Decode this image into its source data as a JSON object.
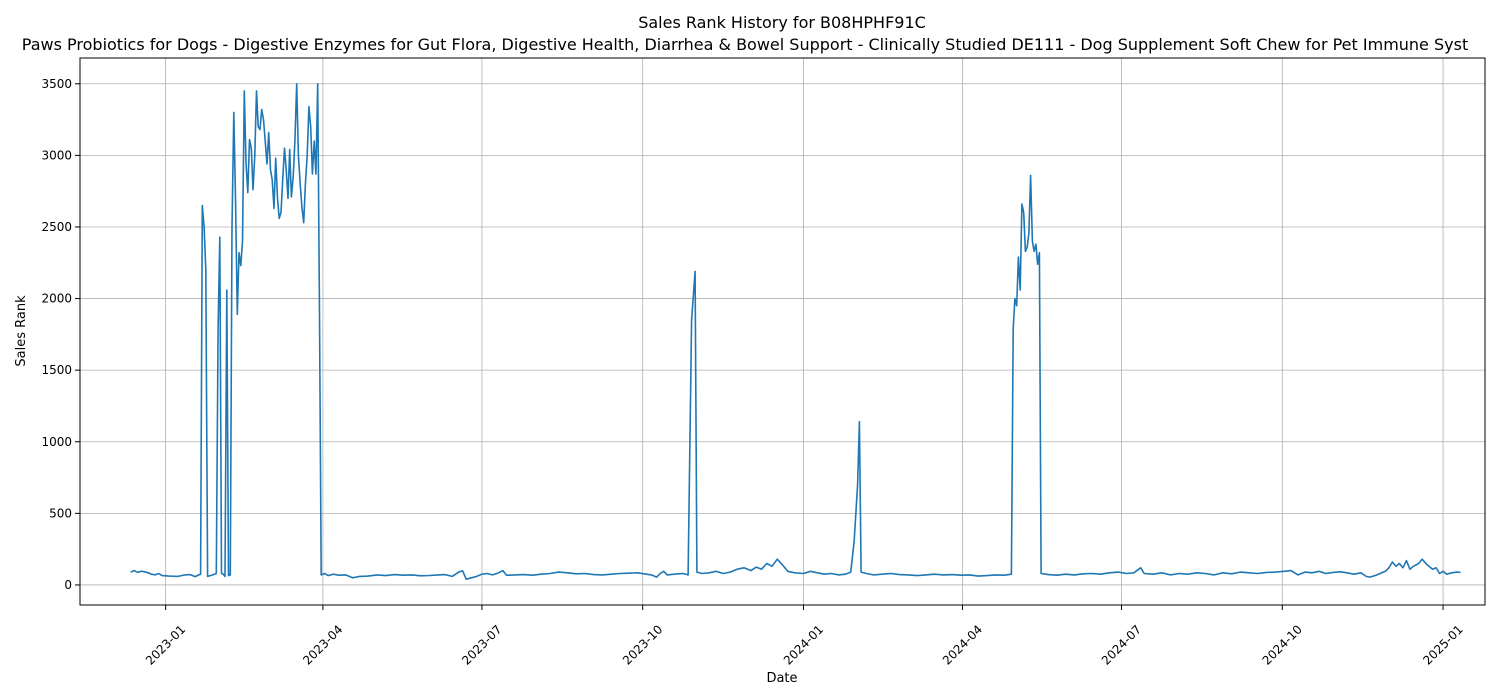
{
  "chart_data": {
    "type": "line",
    "title": "Sales Rank History for B08HPHF91C",
    "subtitle": "Paws Probiotics for Dogs - Digestive Enzymes for Gut Flora, Digestive Health, Diarrhea & Bowel Support - Clinically Studied DE111 - Dog Supplement Soft Chew for Pet Immune Syst",
    "xlabel": "Date",
    "ylabel": "Sales Rank",
    "xlim": [
      "2022-11-13",
      "2025-01-25"
    ],
    "ylim": [
      -140,
      3680
    ],
    "grid": true,
    "line_color": "#1f77b4",
    "x_ticks": [
      "2023-01",
      "2023-04",
      "2023-07",
      "2023-10",
      "2024-01",
      "2024-04",
      "2024-07",
      "2024-10",
      "2025-01"
    ],
    "y_ticks": [
      0,
      500,
      1000,
      1500,
      2000,
      2500,
      3000,
      3500
    ],
    "series": [
      {
        "points": [
          [
            "2022-12-12",
            90
          ],
          [
            "2022-12-14",
            100
          ],
          [
            "2022-12-16",
            88
          ],
          [
            "2022-12-18",
            96
          ],
          [
            "2022-12-20",
            92
          ],
          [
            "2022-12-22",
            85
          ],
          [
            "2022-12-24",
            75
          ],
          [
            "2022-12-26",
            70
          ],
          [
            "2022-12-28",
            80
          ],
          [
            "2022-12-30",
            65
          ],
          [
            "2023-01-03",
            62
          ],
          [
            "2023-01-08",
            60
          ],
          [
            "2023-01-12",
            70
          ],
          [
            "2023-01-15",
            72
          ],
          [
            "2023-01-18",
            58
          ],
          [
            "2023-01-20",
            70
          ],
          [
            "2023-01-21",
            75
          ],
          [
            "2023-01-22",
            2650
          ],
          [
            "2023-01-23",
            2500
          ],
          [
            "2023-01-24",
            2200
          ],
          [
            "2023-01-25",
            60
          ],
          [
            "2023-01-28",
            70
          ],
          [
            "2023-01-30",
            80
          ],
          [
            "2023-01-31",
            1800
          ],
          [
            "2023-02-01",
            2430
          ],
          [
            "2023-02-02",
            80
          ],
          [
            "2023-02-03",
            75
          ],
          [
            "2023-02-04",
            60
          ],
          [
            "2023-02-05",
            2060
          ],
          [
            "2023-02-06",
            65
          ],
          [
            "2023-02-07",
            70
          ],
          [
            "2023-02-08",
            2500
          ],
          [
            "2023-02-09",
            3300
          ],
          [
            "2023-02-10",
            2700
          ],
          [
            "2023-02-11",
            1890
          ],
          [
            "2023-02-12",
            2320
          ],
          [
            "2023-02-13",
            2230
          ],
          [
            "2023-02-14",
            2400
          ],
          [
            "2023-02-15",
            3450
          ],
          [
            "2023-02-16",
            2950
          ],
          [
            "2023-02-17",
            2740
          ],
          [
            "2023-02-18",
            3110
          ],
          [
            "2023-02-19",
            3050
          ],
          [
            "2023-02-20",
            2760
          ],
          [
            "2023-02-21",
            3000
          ],
          [
            "2023-02-22",
            3450
          ],
          [
            "2023-02-23",
            3200
          ],
          [
            "2023-02-24",
            3180
          ],
          [
            "2023-02-25",
            3320
          ],
          [
            "2023-02-26",
            3250
          ],
          [
            "2023-02-27",
            3100
          ],
          [
            "2023-02-28",
            2940
          ],
          [
            "2023-03-01",
            3160
          ],
          [
            "2023-03-02",
            2900
          ],
          [
            "2023-03-03",
            2830
          ],
          [
            "2023-03-04",
            2630
          ],
          [
            "2023-03-05",
            2980
          ],
          [
            "2023-03-06",
            2700
          ],
          [
            "2023-03-07",
            2560
          ],
          [
            "2023-03-08",
            2600
          ],
          [
            "2023-03-09",
            2830
          ],
          [
            "2023-03-10",
            3050
          ],
          [
            "2023-03-11",
            2900
          ],
          [
            "2023-03-12",
            2700
          ],
          [
            "2023-03-13",
            3040
          ],
          [
            "2023-03-14",
            2710
          ],
          [
            "2023-03-15",
            2850
          ],
          [
            "2023-03-16",
            3100
          ],
          [
            "2023-03-17",
            3500
          ],
          [
            "2023-03-18",
            3000
          ],
          [
            "2023-03-19",
            2800
          ],
          [
            "2023-03-20",
            2640
          ],
          [
            "2023-03-21",
            2530
          ],
          [
            "2023-03-22",
            2800
          ],
          [
            "2023-03-23",
            3000
          ],
          [
            "2023-03-24",
            3340
          ],
          [
            "2023-03-25",
            3200
          ],
          [
            "2023-03-26",
            2870
          ],
          [
            "2023-03-27",
            3100
          ],
          [
            "2023-03-28",
            2870
          ],
          [
            "2023-03-29",
            3500
          ],
          [
            "2023-03-30",
            2000
          ],
          [
            "2023-03-31",
            70
          ],
          [
            "2023-04-02",
            80
          ],
          [
            "2023-04-04",
            65
          ],
          [
            "2023-04-07",
            75
          ],
          [
            "2023-04-10",
            68
          ],
          [
            "2023-04-14",
            70
          ],
          [
            "2023-04-18",
            50
          ],
          [
            "2023-04-22",
            60
          ],
          [
            "2023-04-27",
            62
          ],
          [
            "2023-05-02",
            70
          ],
          [
            "2023-05-07",
            65
          ],
          [
            "2023-05-12",
            72
          ],
          [
            "2023-05-17",
            68
          ],
          [
            "2023-05-22",
            70
          ],
          [
            "2023-05-27",
            64
          ],
          [
            "2023-06-01",
            66
          ],
          [
            "2023-06-06",
            70
          ],
          [
            "2023-06-10",
            72
          ],
          [
            "2023-06-14",
            60
          ],
          [
            "2023-06-18",
            92
          ],
          [
            "2023-06-20",
            98
          ],
          [
            "2023-06-22",
            40
          ],
          [
            "2023-06-25",
            50
          ],
          [
            "2023-06-28",
            60
          ],
          [
            "2023-07-01",
            75
          ],
          [
            "2023-07-04",
            80
          ],
          [
            "2023-07-07",
            70
          ],
          [
            "2023-07-10",
            82
          ],
          [
            "2023-07-13",
            100
          ],
          [
            "2023-07-15",
            68
          ],
          [
            "2023-07-20",
            70
          ],
          [
            "2023-07-25",
            72
          ],
          [
            "2023-07-30",
            68
          ],
          [
            "2023-08-04",
            75
          ],
          [
            "2023-08-09",
            80
          ],
          [
            "2023-08-14",
            90
          ],
          [
            "2023-08-19",
            85
          ],
          [
            "2023-08-24",
            78
          ],
          [
            "2023-08-29",
            80
          ],
          [
            "2023-09-03",
            72
          ],
          [
            "2023-09-08",
            70
          ],
          [
            "2023-09-13",
            75
          ],
          [
            "2023-09-18",
            80
          ],
          [
            "2023-09-23",
            82
          ],
          [
            "2023-09-28",
            85
          ],
          [
            "2023-10-03",
            75
          ],
          [
            "2023-10-06",
            70
          ],
          [
            "2023-10-09",
            55
          ],
          [
            "2023-10-11",
            80
          ],
          [
            "2023-10-13",
            95
          ],
          [
            "2023-10-15",
            70
          ],
          [
            "2023-10-19",
            75
          ],
          [
            "2023-10-24",
            80
          ],
          [
            "2023-10-27",
            70
          ],
          [
            "2023-10-29",
            1850
          ],
          [
            "2023-10-31",
            2190
          ],
          [
            "2023-11-01",
            90
          ],
          [
            "2023-11-04",
            80
          ],
          [
            "2023-11-08",
            85
          ],
          [
            "2023-11-12",
            95
          ],
          [
            "2023-11-16",
            80
          ],
          [
            "2023-11-20",
            90
          ],
          [
            "2023-11-24",
            110
          ],
          [
            "2023-11-28",
            120
          ],
          [
            "2023-12-02",
            100
          ],
          [
            "2023-12-05",
            125
          ],
          [
            "2023-12-08",
            110
          ],
          [
            "2023-12-11",
            150
          ],
          [
            "2023-12-14",
            130
          ],
          [
            "2023-12-17",
            180
          ],
          [
            "2023-12-20",
            140
          ],
          [
            "2023-12-23",
            95
          ],
          [
            "2023-12-27",
            85
          ],
          [
            "2024-01-01",
            80
          ],
          [
            "2024-01-05",
            95
          ],
          [
            "2024-01-09",
            85
          ],
          [
            "2024-01-13",
            75
          ],
          [
            "2024-01-17",
            80
          ],
          [
            "2024-01-21",
            70
          ],
          [
            "2024-01-25",
            75
          ],
          [
            "2024-01-28",
            90
          ],
          [
            "2024-01-30",
            300
          ],
          [
            "2024-02-01",
            700
          ],
          [
            "2024-02-02",
            1140
          ],
          [
            "2024-02-03",
            90
          ],
          [
            "2024-02-06",
            80
          ],
          [
            "2024-02-10",
            70
          ],
          [
            "2024-02-15",
            75
          ],
          [
            "2024-02-20",
            80
          ],
          [
            "2024-02-25",
            72
          ],
          [
            "2024-03-01",
            70
          ],
          [
            "2024-03-06",
            65
          ],
          [
            "2024-03-11",
            70
          ],
          [
            "2024-03-16",
            75
          ],
          [
            "2024-03-21",
            70
          ],
          [
            "2024-03-26",
            72
          ],
          [
            "2024-03-31",
            68
          ],
          [
            "2024-04-05",
            70
          ],
          [
            "2024-04-10",
            62
          ],
          [
            "2024-04-15",
            65
          ],
          [
            "2024-04-20",
            70
          ],
          [
            "2024-04-25",
            68
          ],
          [
            "2024-04-29",
            75
          ],
          [
            "2024-04-30",
            1790
          ],
          [
            "2024-05-01",
            2000
          ],
          [
            "2024-05-02",
            1950
          ],
          [
            "2024-05-03",
            2290
          ],
          [
            "2024-05-04",
            2060
          ],
          [
            "2024-05-05",
            2660
          ],
          [
            "2024-05-06",
            2600
          ],
          [
            "2024-05-07",
            2330
          ],
          [
            "2024-05-08",
            2360
          ],
          [
            "2024-05-09",
            2460
          ],
          [
            "2024-05-10",
            2860
          ],
          [
            "2024-05-11",
            2400
          ],
          [
            "2024-05-12",
            2330
          ],
          [
            "2024-05-13",
            2380
          ],
          [
            "2024-05-14",
            2240
          ],
          [
            "2024-05-15",
            2320
          ],
          [
            "2024-05-16",
            80
          ],
          [
            "2024-05-20",
            72
          ],
          [
            "2024-05-25",
            68
          ],
          [
            "2024-05-30",
            75
          ],
          [
            "2024-06-04",
            70
          ],
          [
            "2024-06-09",
            78
          ],
          [
            "2024-06-14",
            80
          ],
          [
            "2024-06-19",
            75
          ],
          [
            "2024-06-24",
            85
          ],
          [
            "2024-06-29",
            90
          ],
          [
            "2024-07-04",
            80
          ],
          [
            "2024-07-08",
            85
          ],
          [
            "2024-07-12",
            120
          ],
          [
            "2024-07-14",
            80
          ],
          [
            "2024-07-19",
            75
          ],
          [
            "2024-07-24",
            85
          ],
          [
            "2024-07-29",
            70
          ],
          [
            "2024-08-03",
            80
          ],
          [
            "2024-08-08",
            75
          ],
          [
            "2024-08-13",
            85
          ],
          [
            "2024-08-18",
            80
          ],
          [
            "2024-08-23",
            70
          ],
          [
            "2024-08-28",
            85
          ],
          [
            "2024-09-02",
            78
          ],
          [
            "2024-09-07",
            90
          ],
          [
            "2024-09-12",
            85
          ],
          [
            "2024-09-17",
            80
          ],
          [
            "2024-09-22",
            88
          ],
          [
            "2024-09-27",
            90
          ],
          [
            "2024-10-02",
            95
          ],
          [
            "2024-10-06",
            100
          ],
          [
            "2024-10-10",
            70
          ],
          [
            "2024-10-14",
            90
          ],
          [
            "2024-10-18",
            85
          ],
          [
            "2024-10-22",
            95
          ],
          [
            "2024-10-26",
            80
          ],
          [
            "2024-10-30",
            88
          ],
          [
            "2024-11-03",
            92
          ],
          [
            "2024-11-07",
            85
          ],
          [
            "2024-11-11",
            75
          ],
          [
            "2024-11-15",
            85
          ],
          [
            "2024-11-18",
            60
          ],
          [
            "2024-11-20",
            55
          ],
          [
            "2024-11-23",
            65
          ],
          [
            "2024-11-26",
            80
          ],
          [
            "2024-11-29",
            95
          ],
          [
            "2024-12-01",
            120
          ],
          [
            "2024-12-03",
            160
          ],
          [
            "2024-12-05",
            130
          ],
          [
            "2024-12-07",
            150
          ],
          [
            "2024-12-09",
            120
          ],
          [
            "2024-12-11",
            170
          ],
          [
            "2024-12-13",
            110
          ],
          [
            "2024-12-15",
            130
          ],
          [
            "2024-12-18",
            150
          ],
          [
            "2024-12-20",
            180
          ],
          [
            "2024-12-23",
            140
          ],
          [
            "2024-12-26",
            110
          ],
          [
            "2024-12-28",
            120
          ],
          [
            "2024-12-30",
            80
          ],
          [
            "2025-01-01",
            95
          ],
          [
            "2025-01-03",
            75
          ],
          [
            "2025-01-06",
            85
          ],
          [
            "2025-01-09",
            90
          ],
          [
            "2025-01-11",
            88
          ]
        ]
      }
    ]
  }
}
